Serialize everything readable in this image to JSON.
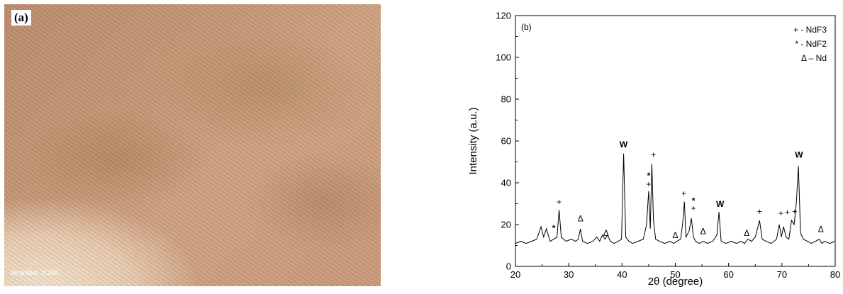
{
  "micrograph": {
    "panel_label": "(a)",
    "magnification_label": "Vergrößer.:X 300"
  },
  "chart_data": {
    "type": "line",
    "panel_label": "(b)",
    "xlabel": "2θ (degree)",
    "ylabel": "Intensity (a.u.)",
    "xlim": [
      20,
      80
    ],
    "ylim": [
      0,
      120
    ],
    "xticks": [
      20,
      30,
      40,
      50,
      60,
      70,
      80
    ],
    "yticks": [
      0,
      20,
      40,
      60,
      80,
      100,
      120
    ],
    "legend": [
      "+ - NdF3",
      "* - NdF2",
      "Δ – Nd"
    ],
    "legend_position": "top-right",
    "series": [
      {
        "x": [
          20.0,
          21.0,
          22.0,
          23.0,
          24.0,
          24.8,
          25.3,
          25.8,
          26.5,
          27.2,
          27.8,
          28.2,
          28.6,
          29.5,
          30.5,
          31.3,
          31.8,
          32.2,
          32.6,
          33.5,
          34.5,
          35.3,
          35.8,
          36.3,
          36.8,
          37.3,
          37.8,
          38.5,
          39.3,
          39.9,
          40.3,
          40.7,
          41.3,
          42.0,
          43.0,
          44.0,
          44.6,
          45.0,
          45.3,
          45.6,
          45.9,
          46.3,
          47.0,
          48.0,
          49.0,
          49.7,
          50.3,
          51.0,
          51.4,
          51.7,
          52.0,
          52.6,
          53.0,
          53.4,
          53.8,
          54.5,
          55.3,
          56.0,
          57.0,
          57.8,
          58.2,
          58.6,
          59.5,
          60.5,
          61.5,
          62.3,
          63.0,
          63.6,
          64.3,
          65.0,
          65.8,
          66.3,
          67.0,
          68.0,
          69.0,
          69.5,
          69.9,
          70.3,
          70.8,
          71.3,
          71.8,
          72.3,
          72.7,
          73.1,
          73.5,
          74.0,
          74.8,
          75.5,
          76.3,
          77.0,
          77.5,
          78.0,
          79.0,
          80.0
        ],
        "y": [
          11,
          12,
          11,
          12,
          13,
          19,
          14,
          18,
          12,
          13,
          14,
          27,
          14,
          12,
          13,
          12,
          13,
          18,
          12,
          11,
          12,
          14,
          12,
          15,
          13,
          15,
          12,
          11,
          12,
          13,
          54,
          14,
          12,
          11,
          12,
          13,
          20,
          36,
          18,
          49,
          22,
          13,
          12,
          11,
          12,
          11,
          12,
          13,
          21,
          31,
          14,
          17,
          23,
          14,
          12,
          11,
          12,
          11,
          12,
          15,
          26,
          12,
          11,
          12,
          11,
          12,
          11,
          13,
          12,
          14,
          22,
          13,
          12,
          11,
          13,
          20,
          14,
          19,
          14,
          13,
          22,
          20,
          30,
          48,
          16,
          13,
          12,
          11,
          12,
          13,
          11,
          12,
          11,
          12
        ]
      }
    ],
    "annotations": [
      {
        "text": "+",
        "x": 28.2,
        "y": 29.5
      },
      {
        "text": "*",
        "x": 27.2,
        "y": 17
      },
      {
        "text": "Δ",
        "x": 32.2,
        "y": 21.5
      },
      {
        "text": "W",
        "x": 40.3,
        "y": 57
      },
      {
        "text": "*",
        "x": 45.0,
        "y": 42
      },
      {
        "text": "+",
        "x": 45.0,
        "y": 38
      },
      {
        "text": "+",
        "x": 45.9,
        "y": 52
      },
      {
        "text": "Δ",
        "x": 37.0,
        "y": 14.5
      },
      {
        "text": "+",
        "x": 51.6,
        "y": 33.5
      },
      {
        "text": "*",
        "x": 53.4,
        "y": 30
      },
      {
        "text": "+",
        "x": 53.4,
        "y": 26.5
      },
      {
        "text": "Δ",
        "x": 50.0,
        "y": 13.5
      },
      {
        "text": "Δ",
        "x": 55.2,
        "y": 15.5
      },
      {
        "text": "W",
        "x": 58.4,
        "y": 28.5
      },
      {
        "text": "Δ",
        "x": 63.4,
        "y": 14.5
      },
      {
        "text": "+",
        "x": 65.8,
        "y": 25
      },
      {
        "text": "+",
        "x": 69.8,
        "y": 24
      },
      {
        "text": "+",
        "x": 71.0,
        "y": 24.5
      },
      {
        "text": "+",
        "x": 72.4,
        "y": 25
      },
      {
        "text": "W",
        "x": 73.2,
        "y": 52
      },
      {
        "text": "Δ",
        "x": 77.3,
        "y": 16.5
      }
    ]
  }
}
